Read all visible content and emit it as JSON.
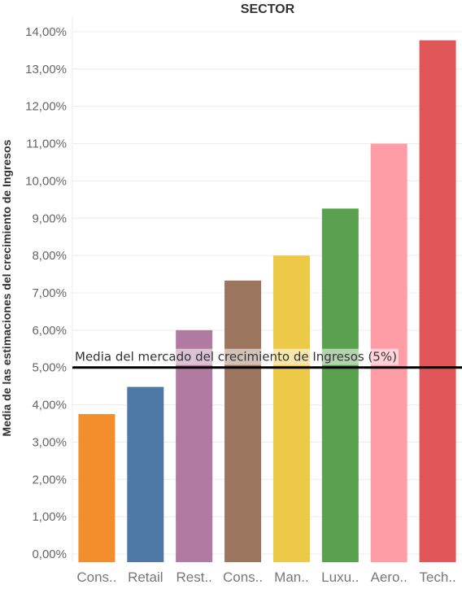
{
  "chart_data": {
    "type": "bar",
    "title": "SECTOR",
    "ylabel": "Media de las estimaciones del crecimiento de Ingresos",
    "xlabel": "",
    "categories": [
      "Cons..",
      "Retail",
      "Rest..",
      "Cons..",
      "Man..",
      "Luxu..",
      "Aero..",
      "Tech.."
    ],
    "values": [
      3.75,
      4.48,
      6.0,
      7.33,
      8.0,
      9.26,
      11.0,
      13.77
    ],
    "colors": [
      "#F28E2B",
      "#4E79A7",
      "#B07AA1",
      "#9C755F",
      "#EDC948",
      "#59A14F",
      "#FF9DA7",
      "#E15759"
    ],
    "ylim": [
      0,
      14
    ],
    "yticks": [
      0,
      1,
      2,
      3,
      4,
      5,
      6,
      7,
      8,
      9,
      10,
      11,
      12,
      13,
      14
    ],
    "ytick_labels": [
      "0,00%",
      "1,00%",
      "2,00%",
      "3,00%",
      "4,00%",
      "5,00%",
      "6,00%",
      "7,00%",
      "8,00%",
      "9,00%",
      "10,00%",
      "11,00%",
      "12,00%",
      "13,00%",
      "14,00%"
    ],
    "reference_line": {
      "value": 5,
      "label": "Media del mercado del crecimiento de Ingresos (5%)",
      "color": "#000000"
    },
    "grid": true,
    "legend": "none"
  }
}
